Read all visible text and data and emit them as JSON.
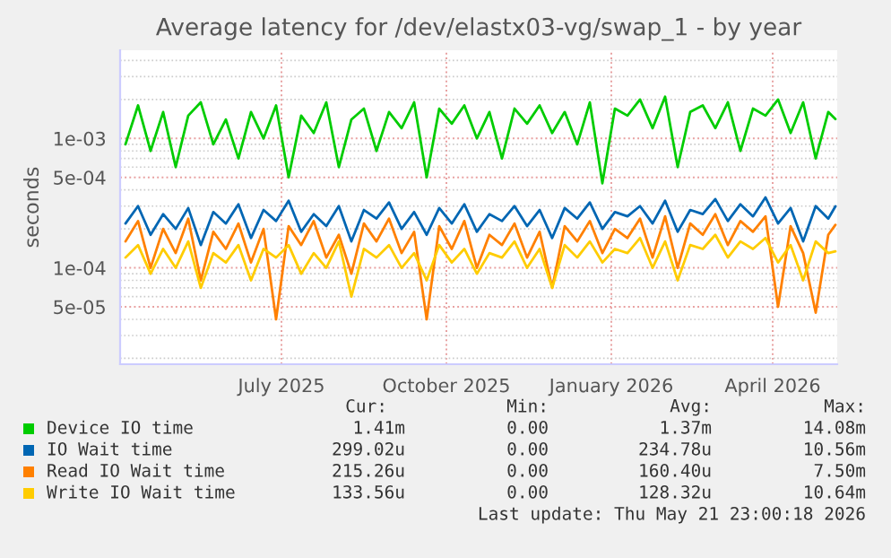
{
  "chart_data": {
    "type": "line",
    "title": "Average latency for /dev/elastx03-vg/swap_1 - by year",
    "ylabel": "seconds",
    "x": [
      "2025-04-20",
      "2025-04-27",
      "2025-05-04",
      "2025-05-11",
      "2025-05-18",
      "2025-05-25",
      "2025-06-01",
      "2025-06-08",
      "2025-06-15",
      "2025-06-22",
      "2025-06-29",
      "2025-07-06",
      "2025-07-13",
      "2025-07-20",
      "2025-07-27",
      "2025-08-03",
      "2025-08-10",
      "2025-08-17",
      "2025-08-24",
      "2025-08-31",
      "2025-09-07",
      "2025-09-14",
      "2025-09-21",
      "2025-09-28",
      "2025-10-05",
      "2025-10-12",
      "2025-10-19",
      "2025-10-26",
      "2025-11-02",
      "2025-11-09",
      "2025-11-16",
      "2025-11-23",
      "2025-11-30",
      "2025-12-07",
      "2025-12-14",
      "2025-12-21",
      "2025-12-28",
      "2026-01-04",
      "2026-01-11",
      "2026-01-18",
      "2026-01-25",
      "2026-02-01",
      "2026-02-08",
      "2026-02-15",
      "2026-02-22",
      "2026-03-01",
      "2026-03-08",
      "2026-03-15",
      "2026-03-22",
      "2026-03-29",
      "2026-04-05",
      "2026-04-12",
      "2026-04-19",
      "2026-04-26",
      "2026-05-03",
      "2026-05-10",
      "2026-05-17",
      "2026-05-21"
    ],
    "series": [
      {
        "name": "Device IO time",
        "color": "#00cc00",
        "values": [
          0.0009,
          0.0018,
          0.0008,
          0.0016,
          0.0006,
          0.0015,
          0.0019,
          0.0009,
          0.0014,
          0.0007,
          0.0016,
          0.001,
          0.0018,
          0.0005,
          0.0015,
          0.0011,
          0.0019,
          0.0006,
          0.0014,
          0.0017,
          0.0008,
          0.0016,
          0.0012,
          0.0019,
          0.0005,
          0.0017,
          0.0013,
          0.0018,
          0.001,
          0.0016,
          0.0007,
          0.0017,
          0.0013,
          0.0018,
          0.0011,
          0.0016,
          0.0009,
          0.0019,
          0.00045,
          0.0017,
          0.0015,
          0.002,
          0.0012,
          0.0021,
          0.0006,
          0.0016,
          0.0018,
          0.0012,
          0.0019,
          0.0008,
          0.0017,
          0.0015,
          0.002,
          0.0011,
          0.0019,
          0.0007,
          0.0016,
          0.00141
        ]
      },
      {
        "name": "IO Wait time",
        "color": "#0066b3",
        "values": [
          0.00022,
          0.0003,
          0.00018,
          0.00026,
          0.0002,
          0.00029,
          0.00015,
          0.00027,
          0.00022,
          0.00031,
          0.00017,
          0.00028,
          0.00023,
          0.00033,
          0.00019,
          0.00026,
          0.00021,
          0.0003,
          0.00016,
          0.00028,
          0.00024,
          0.00032,
          0.0002,
          0.00027,
          0.00018,
          0.00029,
          0.00022,
          0.00031,
          0.00019,
          0.00026,
          0.00023,
          0.0003,
          0.00021,
          0.00028,
          0.00017,
          0.00029,
          0.00024,
          0.00032,
          0.0002,
          0.00027,
          0.00025,
          0.0003,
          0.00022,
          0.00033,
          0.00019,
          0.00028,
          0.00026,
          0.00034,
          0.00023,
          0.00031,
          0.00025,
          0.00035,
          0.00022,
          0.00029,
          0.00016,
          0.0003,
          0.00024,
          0.000299
        ]
      },
      {
        "name": "Read IO Wait time",
        "color": "#ff8000",
        "values": [
          0.00016,
          0.00023,
          0.0001,
          0.0002,
          0.00013,
          0.00024,
          8e-05,
          0.00019,
          0.00014,
          0.00022,
          0.00011,
          0.0002,
          4e-05,
          0.00021,
          0.00015,
          0.00023,
          0.00012,
          0.00018,
          9e-05,
          0.00022,
          0.00016,
          0.00024,
          0.00013,
          0.00019,
          4e-05,
          0.00021,
          0.00014,
          0.00023,
          0.0001,
          0.00018,
          0.00015,
          0.00022,
          0.00012,
          0.00019,
          7e-05,
          0.00021,
          0.00016,
          0.00023,
          0.00013,
          0.0002,
          0.00017,
          0.00024,
          0.00012,
          0.00025,
          0.0001,
          0.00022,
          0.00018,
          0.00026,
          0.00015,
          0.00023,
          0.00019,
          0.00025,
          5e-05,
          0.00021,
          0.00013,
          4.5e-05,
          0.00018,
          0.000215
        ]
      },
      {
        "name": "Write IO Wait time",
        "color": "#ffcc00",
        "values": [
          0.00012,
          0.00015,
          9e-05,
          0.00014,
          0.0001,
          0.00016,
          7e-05,
          0.00013,
          0.00011,
          0.00015,
          8e-05,
          0.00014,
          0.00012,
          0.00015,
          9e-05,
          0.00013,
          0.0001,
          0.00016,
          6e-05,
          0.00014,
          0.00012,
          0.00015,
          0.0001,
          0.00013,
          8e-05,
          0.00015,
          0.00011,
          0.00014,
          9e-05,
          0.00013,
          0.00012,
          0.00016,
          0.0001,
          0.00014,
          7e-05,
          0.00015,
          0.00012,
          0.00016,
          0.00011,
          0.00014,
          0.00013,
          0.00017,
          0.0001,
          0.00016,
          8e-05,
          0.00015,
          0.00014,
          0.00018,
          0.00012,
          0.00016,
          0.00014,
          0.00017,
          0.00011,
          0.00015,
          8e-05,
          0.00016,
          0.00013,
          0.000134
        ]
      }
    ],
    "log": true,
    "ylim": [
      1.8e-05,
      0.0048
    ],
    "yticks": [
      {
        "value": 5e-05,
        "label": "5e-05"
      },
      {
        "value": 0.0001,
        "label": "1e-04"
      },
      {
        "value": 0.0005,
        "label": "5e-04"
      },
      {
        "value": 0.001,
        "label": "1e-03"
      }
    ],
    "xlim": [
      "2025-04-17",
      "2026-05-22"
    ],
    "xticks": [
      {
        "value": "2025-07-16",
        "label": "July 2025"
      },
      {
        "value": "2025-10-16",
        "label": "October 2025"
      },
      {
        "value": "2026-01-16",
        "label": "January 2026"
      },
      {
        "value": "2026-04-16",
        "label": "April 2026"
      }
    ],
    "grid": true,
    "legend": "bottom",
    "annotations": [
      "Cur:",
      "Min:",
      "Avg:",
      "Max:",
      "1.41m",
      "0.00",
      "1.37m",
      "14.08m",
      "299.02u",
      "0.00",
      "234.78u",
      "10.56m",
      "215.26u",
      "0.00",
      "160.40u",
      "7.50m",
      "133.56u",
      "0.00",
      "128.32u",
      "10.64m",
      "Last update: Thu May 21 23:00:18 2026"
    ]
  }
}
